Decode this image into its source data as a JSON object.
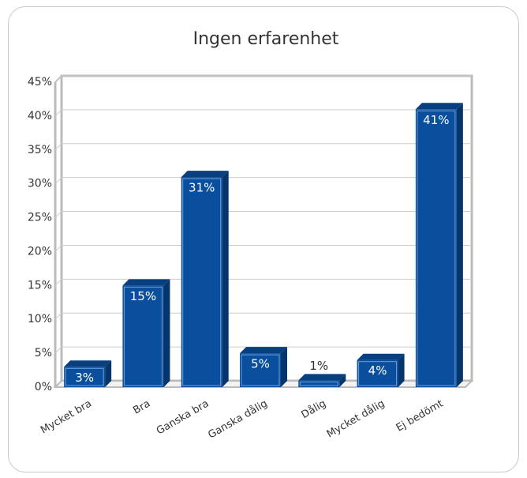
{
  "chart_data": {
    "type": "bar",
    "title": "Ingen erfarenhet",
    "categories": [
      "Mycket bra",
      "Bra",
      "Ganska bra",
      "Ganska dålig",
      "Dålig",
      "Mycket dålig",
      "Ej bedömt"
    ],
    "values": [
      3,
      15,
      31,
      5,
      1,
      4,
      41
    ],
    "value_labels": [
      "3%",
      "15%",
      "31%",
      "5%",
      "1%",
      "4%",
      "41%"
    ],
    "color": "#0a4f9e",
    "ylim": [
      0,
      45
    ],
    "yticks": [
      {
        "value": 0,
        "label": "0%"
      },
      {
        "value": 5,
        "label": "5%"
      },
      {
        "value": 10,
        "label": "10%"
      },
      {
        "value": 15,
        "label": "15%"
      },
      {
        "value": 20,
        "label": "20%"
      },
      {
        "value": 25,
        "label": "25%"
      },
      {
        "value": 30,
        "label": "30%"
      },
      {
        "value": 35,
        "label": "35%"
      },
      {
        "value": 40,
        "label": "40%"
      },
      {
        "value": 45,
        "label": "45%"
      }
    ],
    "grid": true
  }
}
